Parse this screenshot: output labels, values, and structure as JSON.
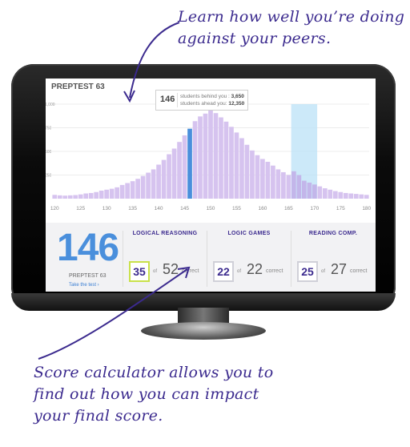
{
  "callouts": {
    "top": "Learn how well you’re doing against your peers.",
    "bottom": "Score calculator allows you to find out how you can impact your final score."
  },
  "screen": {
    "title": "PREPTEST 63",
    "tooltip": {
      "score": "146",
      "behind_label": "students behind you :",
      "behind_value": "3,650",
      "ahead_label": "students ahead you:",
      "ahead_value": "12,350"
    },
    "score": {
      "value": "146",
      "label": "PREPTEST 63",
      "link": "Take the test ›"
    },
    "sections": [
      {
        "title": "LOGICAL REASONING",
        "correct": "35",
        "of": "of",
        "total": "52",
        "suffix": "correct"
      },
      {
        "title": "LOGIC GAMES",
        "correct": "22",
        "of": "of",
        "total": "22",
        "suffix": "correct"
      },
      {
        "title": "READING COMP.",
        "correct": "25",
        "of": "of",
        "total": "27",
        "suffix": "correct"
      }
    ]
  },
  "colors": {
    "bar": "#d6c3ef",
    "highlight_bar": "#4a8fdc",
    "band": "#bfe3f7",
    "accent": "#3b2a8e",
    "score_blue": "#4a8fdc"
  },
  "chart_data": {
    "type": "bar",
    "title": "",
    "xlabel": "",
    "ylabel": "",
    "ylim": [
      0,
      1000
    ],
    "y_ticks": [
      "1,000",
      "750",
      "500",
      "250"
    ],
    "y_tick_values": [
      1000,
      750,
      500,
      250
    ],
    "x_ticks": [
      "120",
      "125",
      "130",
      "135",
      "140",
      "145",
      "150",
      "155",
      "160",
      "165",
      "170",
      "175",
      "180"
    ],
    "x_tick_values": [
      120,
      125,
      130,
      135,
      140,
      145,
      150,
      155,
      160,
      165,
      170,
      175,
      180
    ],
    "highlight_score": 146,
    "highlight_range": [
      166,
      170
    ],
    "grid": true,
    "scores": [
      120,
      121,
      122,
      123,
      124,
      125,
      126,
      127,
      128,
      129,
      130,
      131,
      132,
      133,
      134,
      135,
      136,
      137,
      138,
      139,
      140,
      141,
      142,
      143,
      144,
      145,
      146,
      147,
      148,
      149,
      150,
      151,
      152,
      153,
      154,
      155,
      156,
      157,
      158,
      159,
      160,
      161,
      162,
      163,
      164,
      165,
      166,
      167,
      168,
      169,
      170,
      171,
      172,
      173,
      174,
      175,
      176,
      177,
      178,
      179,
      180
    ],
    "values": [
      40,
      35,
      32,
      35,
      38,
      45,
      55,
      60,
      70,
      85,
      95,
      105,
      120,
      145,
      165,
      185,
      210,
      240,
      275,
      310,
      360,
      410,
      470,
      530,
      600,
      670,
      740,
      820,
      870,
      900,
      935,
      905,
      860,
      815,
      760,
      700,
      640,
      570,
      510,
      460,
      420,
      390,
      350,
      310,
      280,
      250,
      290,
      250,
      190,
      170,
      150,
      130,
      110,
      95,
      80,
      70,
      60,
      55,
      50,
      45,
      40
    ]
  }
}
